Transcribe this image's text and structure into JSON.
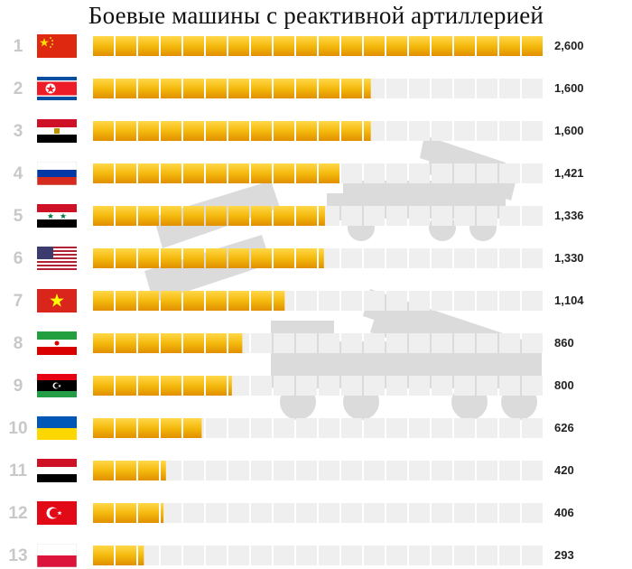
{
  "title": "Боевые машины с реактивной артиллерией",
  "chart_data": {
    "type": "bar",
    "orientation": "horizontal",
    "title": "Боевые машины с реактивной артиллерией",
    "xlim": [
      0,
      2600
    ],
    "rows": [
      {
        "rank": "1",
        "flag": "china-flag-icon",
        "value": 2600,
        "label": "2,600"
      },
      {
        "rank": "2",
        "flag": "north-korea-flag-icon",
        "value": 1600,
        "label": "1,600"
      },
      {
        "rank": "3",
        "flag": "egypt-flag-icon",
        "value": 1600,
        "label": "1,600"
      },
      {
        "rank": "4",
        "flag": "russia-flag-icon",
        "value": 1421,
        "label": "1,421"
      },
      {
        "rank": "5",
        "flag": "syria-flag-icon",
        "value": 1336,
        "label": "1,336"
      },
      {
        "rank": "6",
        "flag": "usa-flag-icon",
        "value": 1330,
        "label": "1,330"
      },
      {
        "rank": "7",
        "flag": "vietnam-flag-icon",
        "value": 1104,
        "label": "1,104"
      },
      {
        "rank": "8",
        "flag": "iran-flag-icon",
        "value": 860,
        "label": "860"
      },
      {
        "rank": "9",
        "flag": "libya-flag-icon",
        "value": 800,
        "label": "800"
      },
      {
        "rank": "10",
        "flag": "ukraine-flag-icon",
        "value": 626,
        "label": "626"
      },
      {
        "rank": "11",
        "flag": "yemen-flag-icon",
        "value": 420,
        "label": "420"
      },
      {
        "rank": "12",
        "flag": "turkey-flag-icon",
        "value": 406,
        "label": "406"
      },
      {
        "rank": "13",
        "flag": "poland-flag-icon",
        "value": 293,
        "label": "293"
      }
    ]
  },
  "colors": {
    "bar_light": "#ffd84a",
    "bar_mid": "#f5b90d",
    "bar_dark": "#e08f00",
    "track": "#efefef",
    "rank": "#c8c8c8"
  }
}
